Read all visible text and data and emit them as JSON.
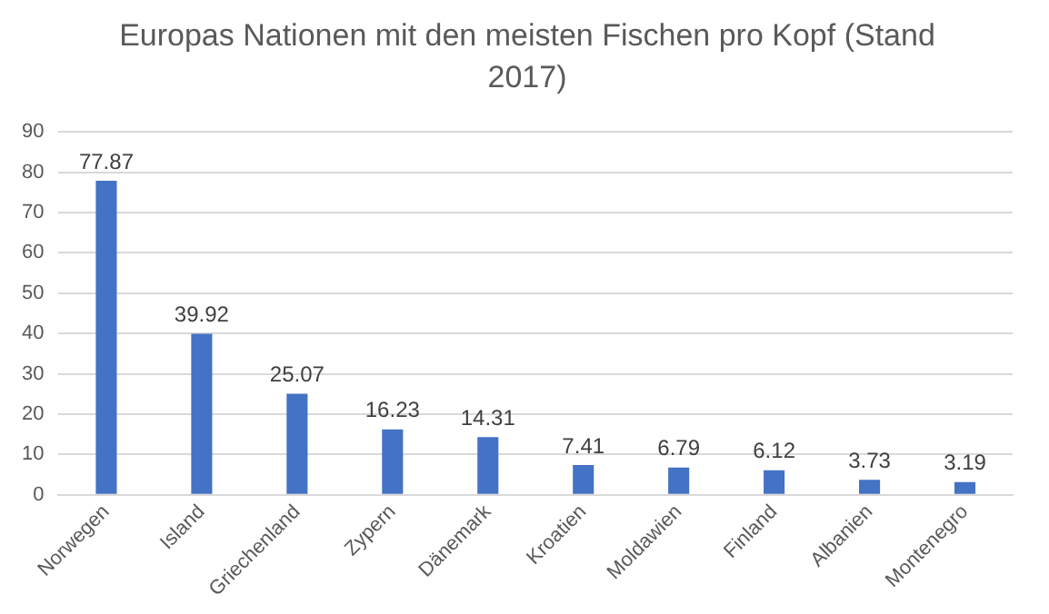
{
  "chart_data": {
    "type": "bar",
    "title": "Europas Nationen mit den meisten Fischen pro Kopf (Stand 2017)",
    "categories": [
      "Norwegen",
      "Island",
      "Griechenland",
      "Zypern",
      "Dänemark",
      "Kroatien",
      "Moldawien",
      "Finland",
      "Albanien",
      "Montenegro"
    ],
    "values": [
      77.87,
      39.92,
      25.07,
      16.23,
      14.31,
      7.41,
      6.79,
      6.12,
      3.73,
      3.19
    ],
    "color": "#4472c4",
    "ylim": [
      0,
      90
    ],
    "yticks": [
      0,
      10,
      20,
      30,
      40,
      50,
      60,
      70,
      80,
      90
    ],
    "grid": "y",
    "data_labels": true
  }
}
